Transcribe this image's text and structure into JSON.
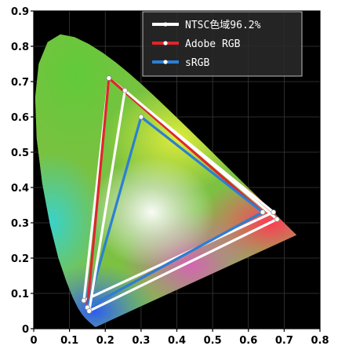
{
  "chart_data": {
    "type": "line",
    "xlim": [
      0,
      0.8
    ],
    "ylim": [
      0,
      0.9
    ],
    "x_ticks": [
      "0",
      "0.1",
      "0.2",
      "0.3",
      "0.4",
      "0.5",
      "0.6",
      "0.7",
      "0.8"
    ],
    "y_ticks": [
      "0",
      "0.1",
      "0.2",
      "0.3",
      "0.4",
      "0.5",
      "0.6",
      "0.7",
      "0.8",
      "0.9"
    ],
    "grid": true,
    "legend_position": "top-right",
    "background": "#000000",
    "series": [
      {
        "name": "NTSC色域96.2%",
        "color": "#ffffff",
        "points": [
          [
            0.67,
            0.33
          ],
          [
            0.21,
            0.71
          ],
          [
            0.14,
            0.08
          ]
        ]
      },
      {
        "name": "Adobe RGB",
        "color": "#e0262b",
        "points": [
          [
            0.64,
            0.33
          ],
          [
            0.21,
            0.71
          ],
          [
            0.15,
            0.06
          ]
        ]
      },
      {
        "name": "sRGB",
        "color": "#2b7fd4",
        "points": [
          [
            0.64,
            0.33
          ],
          [
            0.3,
            0.6
          ],
          [
            0.15,
            0.06
          ]
        ]
      },
      {
        "name": "",
        "color": "#ffffff",
        "points": [
          [
            0.68,
            0.31
          ],
          [
            0.255,
            0.675
          ],
          [
            0.155,
            0.05
          ]
        ]
      }
    ]
  }
}
